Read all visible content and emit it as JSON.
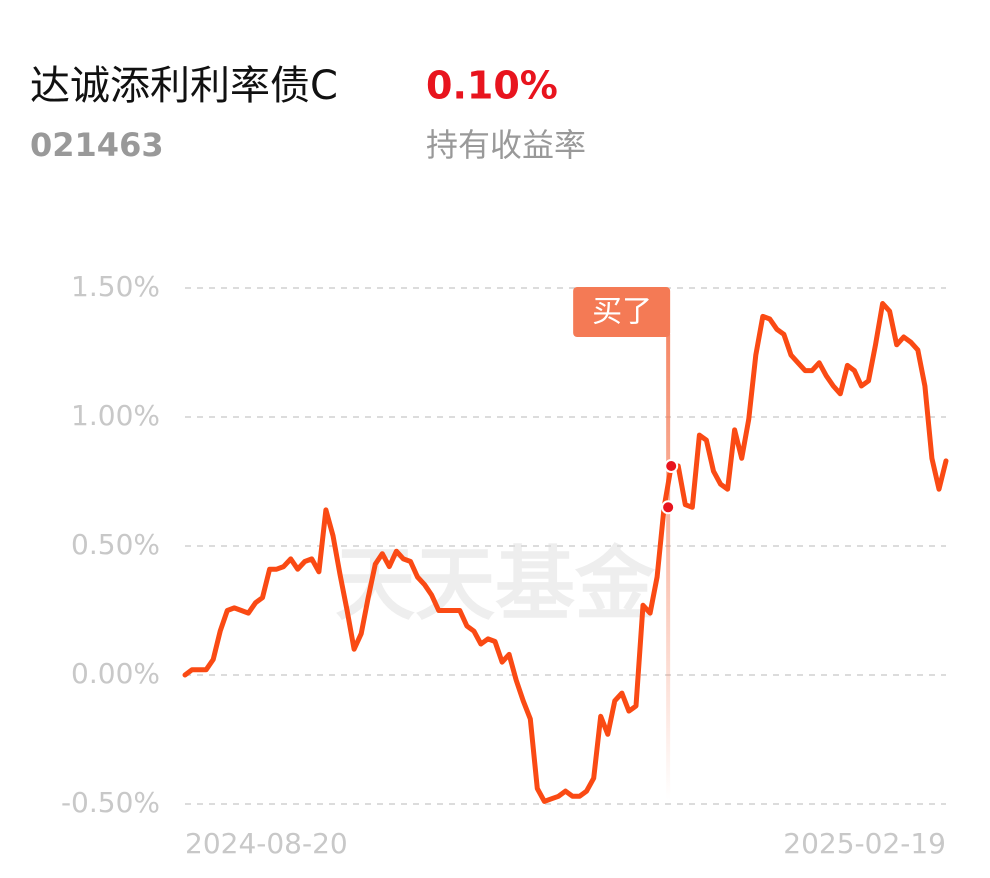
{
  "chart_data": {
    "type": "line",
    "title": "达诚添利利率债C",
    "code": "021463",
    "metric_value": "0.10%",
    "metric_label": "持有收益率",
    "watermark": "天天基金",
    "categories": [
      "2024-08-20",
      null,
      null,
      null,
      null,
      null,
      null,
      null,
      null,
      null,
      null,
      null,
      null,
      null,
      null,
      null,
      null,
      null,
      null,
      null,
      null,
      null,
      null,
      null,
      null,
      null,
      null,
      null,
      null,
      null,
      null,
      null,
      null,
      null,
      null,
      null,
      null,
      null,
      null,
      null,
      null,
      null,
      null,
      null,
      null,
      null,
      null,
      null,
      null,
      null,
      null,
      null,
      null,
      null,
      null,
      null,
      null,
      null,
      null,
      null,
      null,
      null,
      null,
      null,
      null,
      null,
      null,
      null,
      null,
      null,
      null,
      null,
      null,
      null,
      null,
      null,
      null,
      null,
      null,
      null,
      null,
      null,
      null,
      null,
      null,
      null,
      null,
      null,
      null,
      null,
      null,
      null,
      null,
      null,
      null,
      null,
      null,
      null,
      null,
      null,
      null,
      null,
      null,
      null,
      null,
      null,
      null,
      null,
      "2025-02-19"
    ],
    "values": [
      0.0,
      0.02,
      0.02,
      0.02,
      0.06,
      0.17,
      0.25,
      0.26,
      0.25,
      0.24,
      0.28,
      0.3,
      0.41,
      0.41,
      0.42,
      0.45,
      0.41,
      0.44,
      0.45,
      0.4,
      0.64,
      0.54,
      0.39,
      0.25,
      0.1,
      0.16,
      0.3,
      0.43,
      0.47,
      0.42,
      0.48,
      0.45,
      0.44,
      0.38,
      0.35,
      0.31,
      0.25,
      0.25,
      0.25,
      0.25,
      0.19,
      0.17,
      0.12,
      0.14,
      0.13,
      0.05,
      0.08,
      -0.02,
      -0.1,
      -0.17,
      -0.44,
      -0.49,
      -0.48,
      -0.47,
      -0.45,
      -0.47,
      -0.47,
      -0.45,
      -0.4,
      -0.16,
      -0.23,
      -0.1,
      -0.07,
      -0.14,
      -0.12,
      0.27,
      0.24,
      0.38,
      0.65,
      0.81,
      0.81,
      0.66,
      0.65,
      0.93,
      0.91,
      0.79,
      0.74,
      0.72,
      0.95,
      0.84,
      0.99,
      1.24,
      1.39,
      1.38,
      1.34,
      1.32,
      1.24,
      1.21,
      1.18,
      1.18,
      1.21,
      1.16,
      1.12,
      1.09,
      1.2,
      1.18,
      1.12,
      1.14,
      1.28,
      1.44,
      1.41,
      1.28,
      1.31,
      1.29,
      1.26,
      1.12,
      0.84,
      0.72,
      0.83
    ],
    "color": "#fa4a14",
    "buy_marker": {
      "label": "买了",
      "indices": [
        68,
        69
      ],
      "color": "#f47a55"
    },
    "ylim": [
      -0.5,
      1.5
    ],
    "yticks": [
      {
        "value": -0.5,
        "label": "-0.50%"
      },
      {
        "value": 0,
        "label": "0.00%"
      },
      {
        "value": 0.5,
        "label": "0.50%"
      },
      {
        "value": 1,
        "label": "1.00%"
      },
      {
        "value": 1.5,
        "label": "1.50%"
      }
    ],
    "grid": true
  }
}
